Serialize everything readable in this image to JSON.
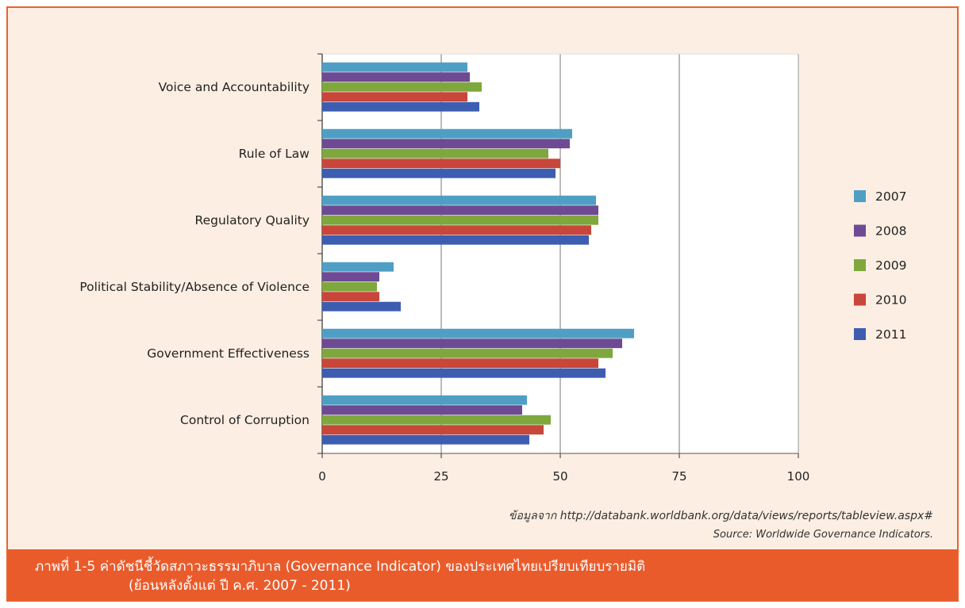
{
  "chart_data": {
    "type": "bar",
    "orientation": "horizontal",
    "categories": [
      "Voice and Accountability",
      "Rule of Law",
      "Regulatory Quality",
      "Political Stability/Absence of Violence",
      "Government Effectiveness",
      "Control of Corruption"
    ],
    "series": [
      {
        "name": "2007",
        "color": "#4f9fc4",
        "values": [
          30.5,
          52.5,
          57.5,
          15,
          65.5,
          43
        ]
      },
      {
        "name": "2008",
        "color": "#6e4a94",
        "values": [
          31,
          52,
          58,
          12,
          63,
          42
        ]
      },
      {
        "name": "2009",
        "color": "#7ea83e",
        "values": [
          33.5,
          47.5,
          58,
          11.5,
          61,
          48
        ]
      },
      {
        "name": "2010",
        "color": "#c9463a",
        "values": [
          30.5,
          50,
          56.5,
          12,
          58,
          46.5
        ]
      },
      {
        "name": "2011",
        "color": "#3d5db0",
        "values": [
          33,
          49,
          56,
          16.5,
          59.5,
          43.5
        ]
      }
    ],
    "xlim": [
      0,
      100
    ],
    "xticks": [
      "0",
      "25",
      "50",
      "75",
      "100"
    ],
    "legend_position": "right",
    "grid": true
  },
  "source_url": "ข้อมูลจาก http://databank.worldbank.org/data/views/reports/tableview.aspx#",
  "source_note": "Source: Worldwide Governance Indicators.",
  "caption": {
    "line1": "ภาพที่ 1-5   ค่าดัชนีชี้วัดสภาวะธรรมาภิบาล (Governance Indicator) ของประเทศไทยเปรียบเทียบรายมิติ",
    "line2": "(ย้อนหลังตั้งแต่ ปี ค.ศ. 2007 - 2011)"
  }
}
